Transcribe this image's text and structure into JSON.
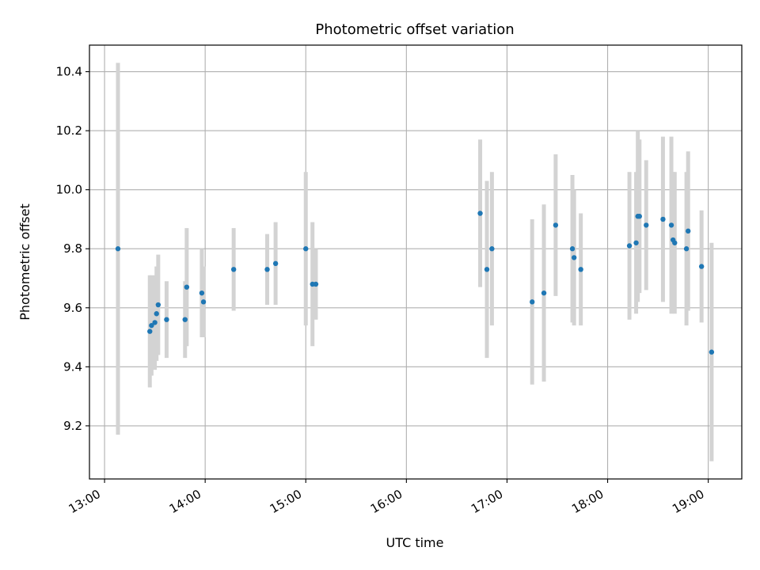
{
  "chart_data": {
    "type": "scatter",
    "title": "Photometric offset variation",
    "xlabel": "UTC time",
    "ylabel": "Photometric offset",
    "x_ticks": [
      "13:00",
      "14:00",
      "15:00",
      "16:00",
      "17:00",
      "18:00",
      "19:00"
    ],
    "y_ticks": [
      "9.2",
      "9.4",
      "9.6",
      "9.8",
      "10.0",
      "10.2",
      "10.4"
    ],
    "xlim": [
      "12:51",
      "19:20"
    ],
    "ylim": [
      9.02,
      10.49
    ],
    "grid": true,
    "colors": {
      "point": "#1f77b4",
      "errorbar": "#d3d3d3",
      "grid": "#b0b0b0"
    },
    "series": [
      {
        "points": [
          {
            "x": "13:08",
            "y": 9.8,
            "err": 0.63
          },
          {
            "x": "13:27",
            "y": 9.52,
            "err": 0.19
          },
          {
            "x": "13:28",
            "y": 9.54,
            "err": 0.17
          },
          {
            "x": "13:30",
            "y": 9.55,
            "err": 0.16
          },
          {
            "x": "13:31",
            "y": 9.58,
            "err": 0.16
          },
          {
            "x": "13:32",
            "y": 9.61,
            "err": 0.17
          },
          {
            "x": "13:37",
            "y": 9.56,
            "err": 0.13
          },
          {
            "x": "13:48",
            "y": 9.56,
            "err": 0.13
          },
          {
            "x": "13:49",
            "y": 9.67,
            "err": 0.2
          },
          {
            "x": "13:58",
            "y": 9.65,
            "err": 0.15
          },
          {
            "x": "13:59",
            "y": 9.62,
            "err": 0.12
          },
          {
            "x": "14:17",
            "y": 9.73,
            "err": 0.14
          },
          {
            "x": "14:37",
            "y": 9.73,
            "err": 0.12
          },
          {
            "x": "14:42",
            "y": 9.75,
            "err": 0.14
          },
          {
            "x": "15:00",
            "y": 9.8,
            "err": 0.26
          },
          {
            "x": "15:04",
            "y": 9.68,
            "err": 0.21
          },
          {
            "x": "15:06",
            "y": 9.68,
            "err": 0.12
          },
          {
            "x": "16:44",
            "y": 9.92,
            "err": 0.25
          },
          {
            "x": "16:48",
            "y": 9.73,
            "err": 0.3
          },
          {
            "x": "16:51",
            "y": 9.8,
            "err": 0.26
          },
          {
            "x": "17:15",
            "y": 9.62,
            "err": 0.28
          },
          {
            "x": "17:22",
            "y": 9.65,
            "err": 0.3
          },
          {
            "x": "17:29",
            "y": 9.88,
            "err": 0.24
          },
          {
            "x": "17:39",
            "y": 9.8,
            "err": 0.25
          },
          {
            "x": "17:40",
            "y": 9.77,
            "err": 0.23
          },
          {
            "x": "17:44",
            "y": 9.73,
            "err": 0.19
          },
          {
            "x": "18:13",
            "y": 9.81,
            "err": 0.25
          },
          {
            "x": "18:17",
            "y": 9.82,
            "err": 0.24
          },
          {
            "x": "18:18",
            "y": 9.91,
            "err": 0.29
          },
          {
            "x": "18:19",
            "y": 9.91,
            "err": 0.26
          },
          {
            "x": "18:23",
            "y": 9.88,
            "err": 0.22
          },
          {
            "x": "18:33",
            "y": 9.9,
            "err": 0.28
          },
          {
            "x": "18:38",
            "y": 9.88,
            "err": 0.3
          },
          {
            "x": "18:39",
            "y": 9.83,
            "err": 0.23
          },
          {
            "x": "18:40",
            "y": 9.82,
            "err": 0.24
          },
          {
            "x": "18:47",
            "y": 9.8,
            "err": 0.26
          },
          {
            "x": "18:48",
            "y": 9.86,
            "err": 0.27
          },
          {
            "x": "18:56",
            "y": 9.74,
            "err": 0.19
          },
          {
            "x": "19:02",
            "y": 9.45,
            "err": 0.37
          }
        ]
      }
    ]
  }
}
